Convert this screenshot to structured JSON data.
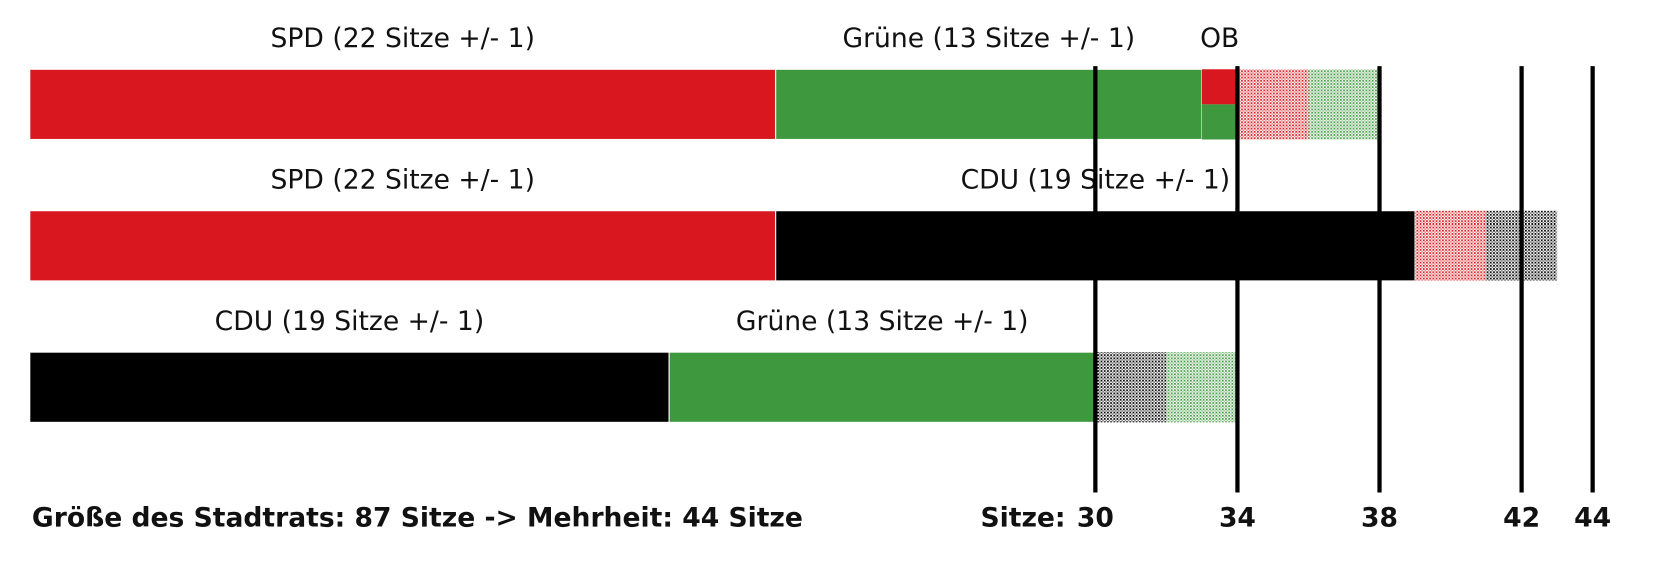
{
  "chart_data": {
    "type": "coalition-bar",
    "rows": [
      {
        "segments": [
          {
            "label": "SPD (22 Sitze +/- 1)",
            "value": 22,
            "error": 1,
            "color": "#d8171e"
          },
          {
            "label": "Grüne (13 Sitze +/- 1)",
            "value": 13,
            "error": 1,
            "color": "#3e993e"
          },
          {
            "label": "OB",
            "value": 1,
            "colors": [
              "#d8171e",
              "#3e993e"
            ]
          }
        ]
      },
      {
        "segments": [
          {
            "label": "SPD (22 Sitze +/- 1)",
            "value": 22,
            "error": 1,
            "color": "#d8171e"
          },
          {
            "label": "CDU (19 Sitze +/- 1)",
            "value": 19,
            "error": 1,
            "color": "#000000"
          }
        ]
      },
      {
        "segments": [
          {
            "label": "CDU (19 Sitze +/- 1)",
            "value": 19,
            "error": 1,
            "color": "#000000"
          },
          {
            "label": "Grüne (13 Sitze +/- 1)",
            "value": 13,
            "error": 1,
            "color": "#3e993e"
          }
        ]
      }
    ],
    "xlim": [
      0,
      45
    ],
    "xticks": [
      30,
      34,
      38,
      42,
      44
    ],
    "xlabel": "Sitze:",
    "footnote": "Größe des Stadtrats: 87 Sitze -> Mehrheit: 44 Sitze"
  }
}
